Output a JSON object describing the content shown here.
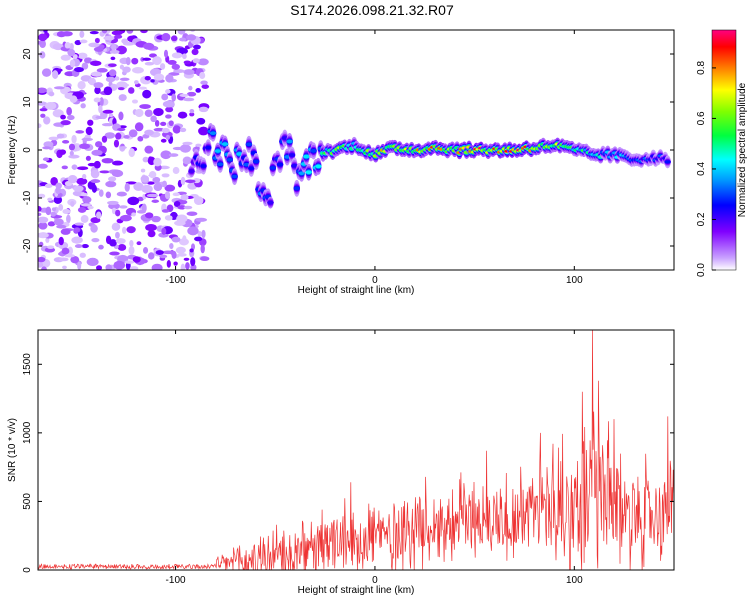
{
  "title": "S174.2026.098.21.32.R07",
  "chart_data": [
    {
      "type": "heatmap",
      "name": "spectrogram",
      "xlabel": "Height of straight line (km)",
      "ylabel": "Frequency (Hz)",
      "xlim": [
        -169,
        150
      ],
      "ylim": [
        -25,
        25
      ],
      "xticks": [
        -100,
        0,
        100
      ],
      "xtick_labels": [
        "-100",
        "0",
        "100"
      ],
      "yticks": [
        20,
        10,
        0,
        -10,
        -20
      ],
      "ytick_labels": [
        "20",
        "10",
        "0",
        "-10",
        "-20"
      ],
      "colorbar": {
        "label": "Normalized spectral amplitude",
        "range": [
          0,
          0.95
        ],
        "ticks": [
          0.0,
          0.2,
          0.4,
          0.6,
          0.8
        ],
        "tick_labels": [
          "0.0",
          "0.2",
          "0.4",
          "0.6",
          "0.8"
        ],
        "colors": [
          "#ffffff",
          "#8000ff",
          "#0000ff",
          "#00ffff",
          "#00ff00",
          "#ffff00",
          "#ff8000",
          "#ff0000",
          "#ff0080"
        ]
      },
      "noise_region": {
        "x_range": [
          -169,
          -85
        ],
        "freq_range": [
          -25,
          25
        ],
        "amplitude": 0.15
      },
      "signal_ridge": [
        {
          "x": -92,
          "freq": -4,
          "amp": 0.25
        },
        {
          "x": -82,
          "freq": 2,
          "amp": 0.35
        },
        {
          "x": -72,
          "freq": -3,
          "amp": 0.4
        },
        {
          "x": -62,
          "freq": -1,
          "amp": 0.35
        },
        {
          "x": -55,
          "freq": -12,
          "amp": 0.3
        },
        {
          "x": -45,
          "freq": 3,
          "amp": 0.3
        },
        {
          "x": -40,
          "freq": -6,
          "amp": 0.35
        },
        {
          "x": -30,
          "freq": -1,
          "amp": 0.4
        },
        {
          "x": -20,
          "freq": 0,
          "amp": 0.6
        },
        {
          "x": -10,
          "freq": 1,
          "amp": 0.55
        },
        {
          "x": 0,
          "freq": -1,
          "amp": 0.7
        },
        {
          "x": 10,
          "freq": 0.5,
          "amp": 0.75
        },
        {
          "x": 20,
          "freq": 0,
          "amp": 0.7
        },
        {
          "x": 30,
          "freq": 0.5,
          "amp": 0.8
        },
        {
          "x": 40,
          "freq": 0,
          "amp": 0.75
        },
        {
          "x": 50,
          "freq": 0,
          "amp": 0.85
        },
        {
          "x": 60,
          "freq": 0,
          "amp": 0.8
        },
        {
          "x": 70,
          "freq": 0,
          "amp": 0.9
        },
        {
          "x": 80,
          "freq": 0.5,
          "amp": 0.8
        },
        {
          "x": 90,
          "freq": 1,
          "amp": 0.65
        },
        {
          "x": 100,
          "freq": 0,
          "amp": 0.55
        },
        {
          "x": 110,
          "freq": -1,
          "amp": 0.45
        },
        {
          "x": 120,
          "freq": -1,
          "amp": 0.4
        },
        {
          "x": 130,
          "freq": -2,
          "amp": 0.35
        },
        {
          "x": 140,
          "freq": -1.5,
          "amp": 0.3
        },
        {
          "x": 148,
          "freq": -2,
          "amp": 0.25
        }
      ]
    },
    {
      "type": "line",
      "name": "snr",
      "xlabel": "Height of straight line (km)",
      "ylabel": "SNR (10 * v/v)",
      "xlim": [
        -169,
        150
      ],
      "ylim": [
        0,
        1750
      ],
      "xticks": [
        -100,
        0,
        100
      ],
      "xtick_labels": [
        "-100",
        "0",
        "100"
      ],
      "yticks": [
        0,
        500,
        1000,
        1500
      ],
      "ytick_labels": [
        "0",
        "500",
        "1000",
        "1500"
      ],
      "series": [
        {
          "name": "SNR",
          "color": "#ee3333",
          "envelope": {
            "x": [
              -169,
              -100,
              -85,
              -75,
              -60,
              -50,
              -40,
              -35,
              -30,
              -20,
              -10,
              0,
              10,
              20,
              30,
              40,
              50,
              60,
              70,
              80,
              90,
              100,
              105,
              110,
              115,
              120,
              130,
              140,
              150
            ],
            "base": [
              20,
              20,
              20,
              40,
              60,
              80,
              90,
              100,
              130,
              170,
              190,
              220,
              260,
              300,
              330,
              330,
              350,
              360,
              360,
              400,
              430,
              420,
              450,
              480,
              450,
              400,
              390,
              380,
              370
            ],
            "amp": [
              25,
              25,
              30,
              120,
              180,
              220,
              250,
              250,
              260,
              320,
              280,
              300,
              330,
              330,
              330,
              320,
              350,
              350,
              360,
              420,
              500,
              520,
              650,
              800,
              650,
              500,
              420,
              400,
              400
            ]
          },
          "peaks": [
            {
              "x": 109,
              "y": 1750
            },
            {
              "x": 112,
              "y": 1380
            },
            {
              "x": 104,
              "y": 1300
            },
            {
              "x": 120,
              "y": 1100
            },
            {
              "x": 83,
              "y": 1000
            },
            {
              "x": 147,
              "y": 1120
            },
            {
              "x": -12,
              "y": 640
            },
            {
              "x": 56,
              "y": 870
            }
          ]
        }
      ]
    }
  ]
}
